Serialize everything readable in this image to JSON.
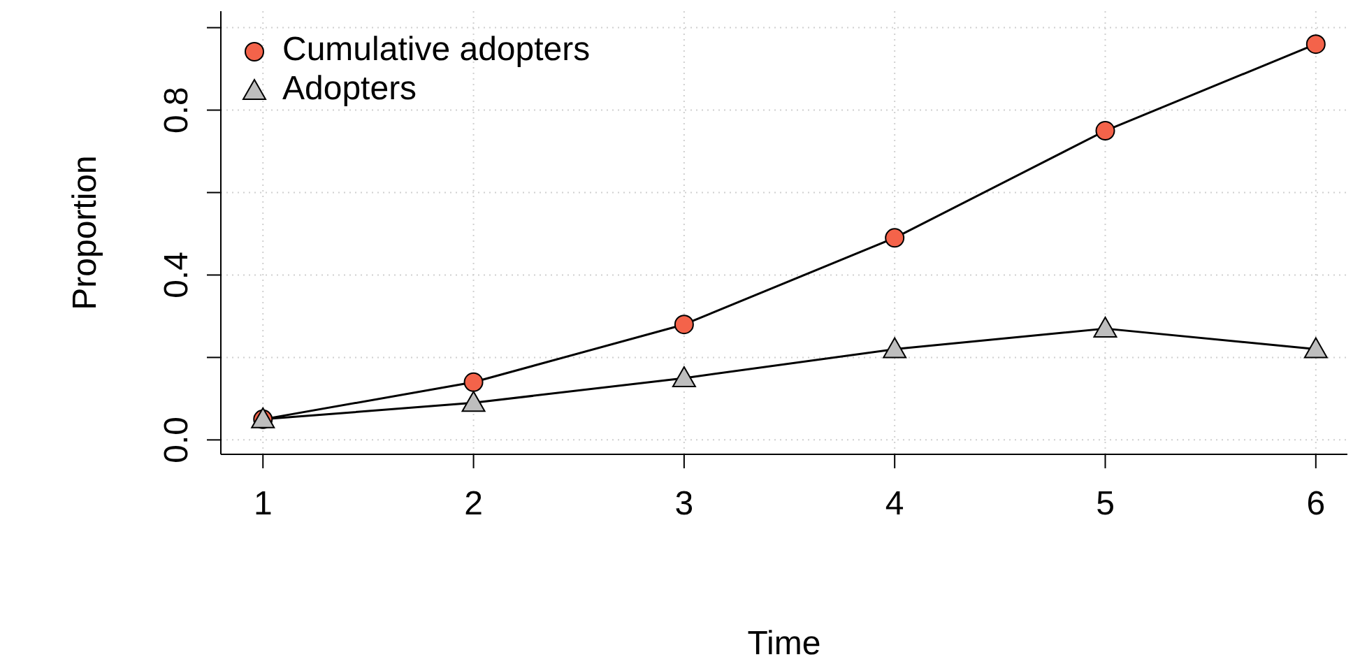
{
  "chart_data": {
    "type": "line",
    "xlabel": "Time",
    "ylabel": "Proportion",
    "x": [
      1,
      2,
      3,
      4,
      5,
      6
    ],
    "series": [
      {
        "name": "Cumulative adopters",
        "color": "#f4634a",
        "marker": "circle",
        "values": [
          0.05,
          0.14,
          0.28,
          0.49,
          0.75,
          0.96
        ]
      },
      {
        "name": "Adopters",
        "color": "#bebebe",
        "marker": "triangle",
        "values": [
          0.05,
          0.09,
          0.15,
          0.22,
          0.27,
          0.22
        ]
      }
    ],
    "xlim": [
      0.8,
      6.15
    ],
    "xticks": [
      1,
      2,
      3,
      4,
      5,
      6
    ],
    "ylim": [
      -0.035,
      1.04
    ],
    "yticks": [
      {
        "value": 0,
        "label": "0.0"
      },
      {
        "value": 0.2,
        "label": null
      },
      0.4,
      {
        "value": 0.6,
        "label": null
      },
      0.8,
      {
        "value": 1.0,
        "label": null
      }
    ],
    "grid": true,
    "legend": "top left"
  }
}
